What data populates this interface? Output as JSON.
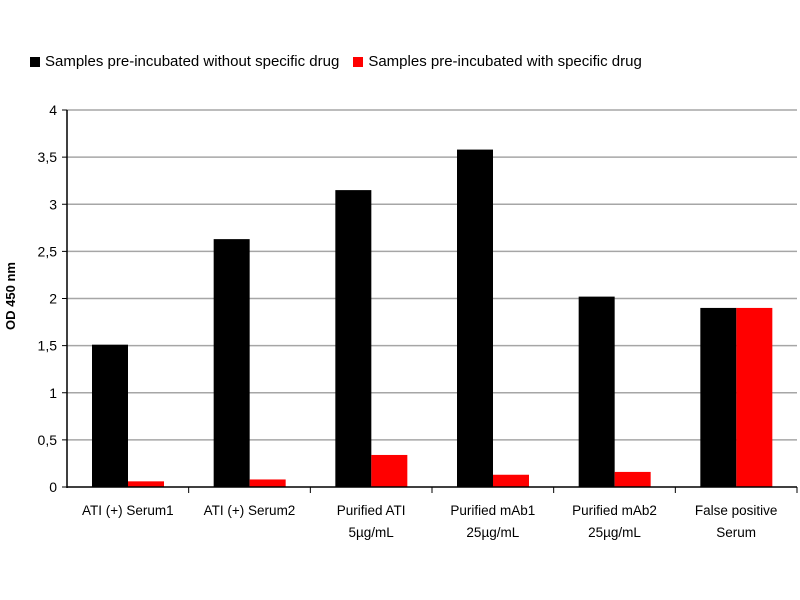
{
  "chart_data": {
    "type": "bar",
    "title": "",
    "xlabel": "",
    "ylabel": "OD 450 nm",
    "ylim": [
      0,
      4
    ],
    "yticks": [
      "0",
      "0,5",
      "1",
      "1,5",
      "2",
      "2,5",
      "3",
      "3,5",
      "4"
    ],
    "grid": true,
    "legend_position": "top",
    "categories": [
      [
        "ATI (+) Serum1"
      ],
      [
        "ATI (+) Serum2"
      ],
      [
        "Purified ATI",
        "5µg/mL"
      ],
      [
        "Purified mAb1",
        "25µg/mL"
      ],
      [
        "Purified mAb2",
        "25µg/mL"
      ],
      [
        "False positive",
        "Serum"
      ]
    ],
    "series": [
      {
        "name": "Samples pre-incubated without specific drug",
        "color": "#000000",
        "values": [
          1.51,
          2.63,
          3.15,
          3.58,
          2.02,
          1.9
        ]
      },
      {
        "name": "Samples pre-incubated with specific drug",
        "color": "#ff0000",
        "values": [
          0.06,
          0.08,
          0.34,
          0.13,
          0.16,
          1.9
        ]
      }
    ]
  }
}
